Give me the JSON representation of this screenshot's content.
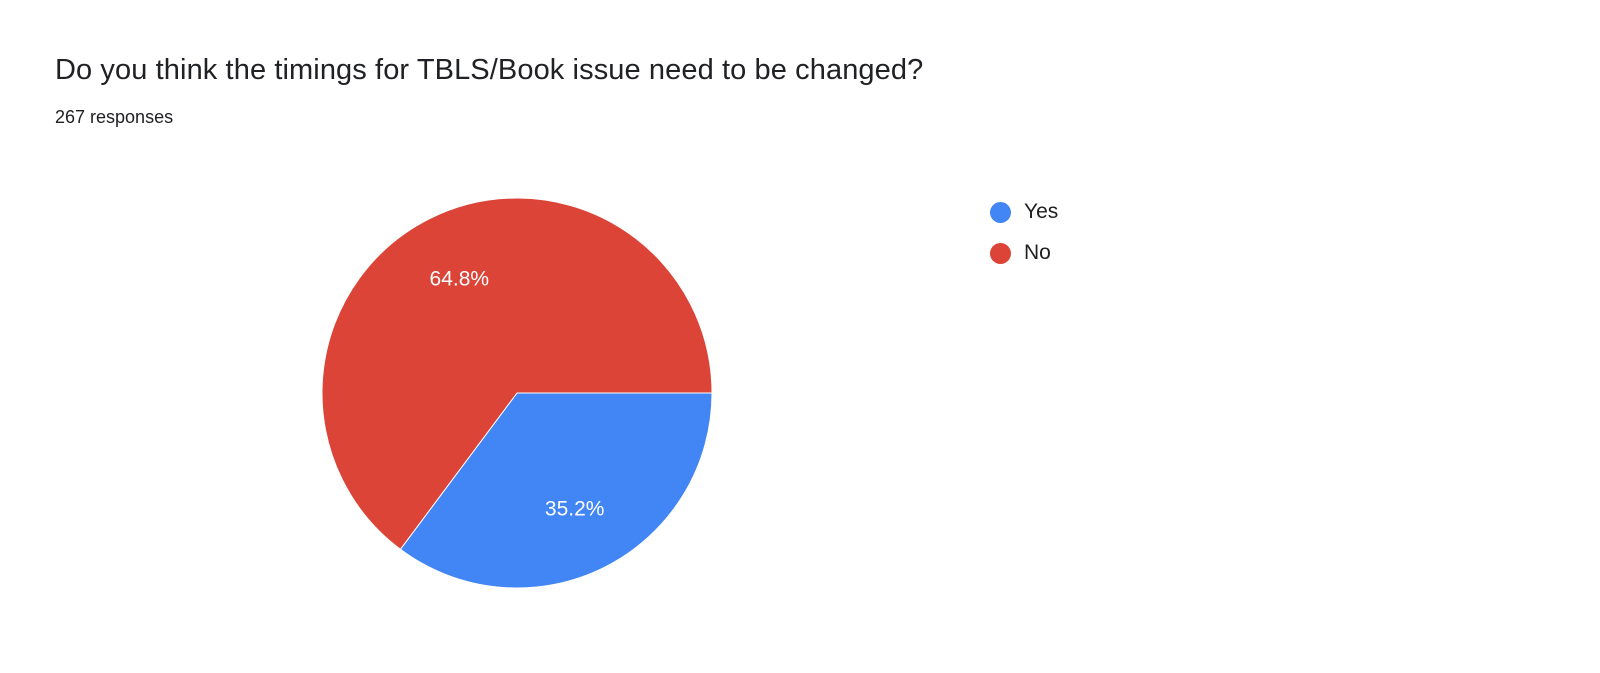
{
  "chart_data": {
    "type": "pie",
    "title": "Do you think the timings for TBLS/Book issue need to be changed?",
    "subtitle": "267 responses",
    "labels": [
      "Yes",
      "No"
    ],
    "values": [
      35.2,
      64.8
    ],
    "value_labels": [
      "35.2%",
      "64.8%"
    ],
    "colors": [
      "#4285f4",
      "#db4437"
    ],
    "start_angle_deg": 90,
    "direction": "clockwise",
    "legend_position": "right",
    "slice_label_color": "#ffffff",
    "background_color": "#ffffff"
  }
}
